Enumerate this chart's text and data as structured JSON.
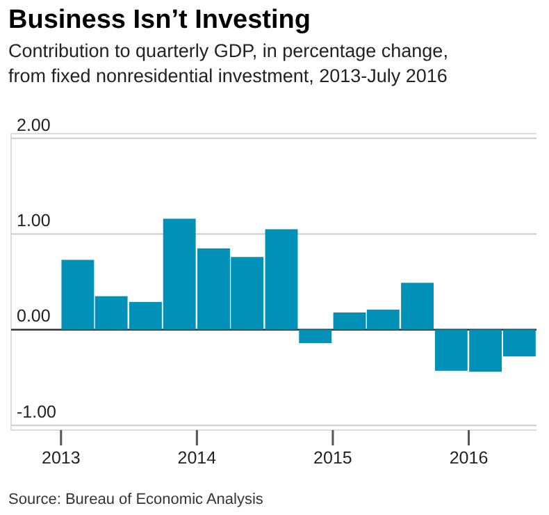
{
  "chart_data": {
    "type": "bar",
    "title": "Business Isn’t Investing",
    "subtitle": "Contribution to quarterly GDP, in percentage change, from fixed nonresidential investment, 2013-July 2016",
    "x": [
      "2013-02-15",
      "2013-05-16",
      "2013-08-16",
      "2013-11-15",
      "2014-02-15",
      "2014-05-16",
      "2014-08-16",
      "2014-11-15",
      "2015-02-15",
      "2015-05-16",
      "2015-08-16",
      "2015-11-15",
      "2016-02-15",
      "2016-05-16"
    ],
    "values": [
      0.73,
      0.35,
      0.29,
      1.16,
      0.85,
      0.76,
      1.05,
      -0.14,
      0.18,
      0.21,
      0.49,
      -0.43,
      -0.44,
      -0.28
    ],
    "color": "#0090b8",
    "xlim": [
      "2012-08-20",
      "2016-07-01"
    ],
    "xticks": [
      "2013",
      "2014",
      "2015",
      "2016"
    ],
    "ylim": [
      -1.05,
      2.05
    ],
    "yticks": [
      {
        "value": -1,
        "label": "-1.00"
      },
      {
        "value": 0,
        "label": "0.00"
      },
      {
        "value": 1,
        "label": "1.00"
      },
      {
        "value": 2,
        "label": "2.00"
      }
    ],
    "grid": "y",
    "annotations": [
      "Source: Bureau of Economic Analysis"
    ]
  }
}
